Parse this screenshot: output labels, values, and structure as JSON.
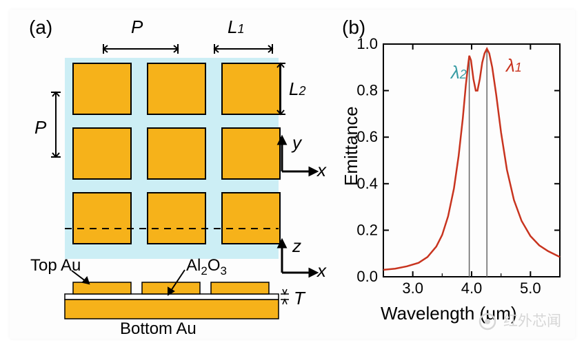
{
  "panel_a": {
    "label": "(a)",
    "dimensions": {
      "P": "P",
      "L1_base": "L",
      "L1_sub": "1",
      "L2_base": "L",
      "L2_sub": "2",
      "T": "T"
    },
    "axes": {
      "x": "x",
      "y": "y",
      "z": "z"
    },
    "materials": {
      "top": "Top Au",
      "spacer_base": "Al",
      "spacer_sub": "2",
      "spacer_base2": "O",
      "spacer_sub2": "3",
      "bottom": "Bottom Au"
    },
    "colors": {
      "substrate": "#cceef5",
      "gold": "#f6b21a",
      "spacer": "#ffffff",
      "stroke": "#000000",
      "dash": "#000000"
    },
    "grid": {
      "rows": 3,
      "cols": 3,
      "patch_w": 84,
      "patch_h": 74,
      "gap_x": 24,
      "gap_y": 20
    }
  },
  "panel_b": {
    "label": "(b)",
    "xlabel": "Wavelength (μm)",
    "ylabel": "Emittance",
    "xlim": [
      2.5,
      5.5
    ],
    "ylim": [
      0.0,
      1.0
    ],
    "xticks": [
      3.0,
      4.0,
      5.0
    ],
    "yticks": [
      0.0,
      0.2,
      0.4,
      0.6,
      0.8,
      1.0
    ],
    "ytick_labels": [
      "0.0",
      "0.2",
      "0.4",
      "0.6",
      "0.8",
      "1.0"
    ],
    "peaks": {
      "lambda1": {
        "wavelength": 4.26,
        "height": 0.98,
        "label_base": "λ",
        "label_sub": "1",
        "color": "#c8341f"
      },
      "lambda2": {
        "wavelength": 3.96,
        "height": 0.95,
        "label_base": "λ",
        "label_sub": "2",
        "color": "#3a9da5"
      }
    },
    "curve_color": "#c8341f",
    "axis_color": "#000000",
    "grid_marker_color": "#666666",
    "background": "#ffffff",
    "line_width": 2.5,
    "data": [
      [
        2.5,
        0.03
      ],
      [
        2.7,
        0.035
      ],
      [
        2.9,
        0.045
      ],
      [
        3.1,
        0.06
      ],
      [
        3.25,
        0.085
      ],
      [
        3.4,
        0.13
      ],
      [
        3.5,
        0.18
      ],
      [
        3.6,
        0.26
      ],
      [
        3.7,
        0.38
      ],
      [
        3.78,
        0.52
      ],
      [
        3.85,
        0.68
      ],
      [
        3.9,
        0.82
      ],
      [
        3.94,
        0.91
      ],
      [
        3.96,
        0.95
      ],
      [
        3.99,
        0.93
      ],
      [
        4.03,
        0.85
      ],
      [
        4.07,
        0.8
      ],
      [
        4.1,
        0.8
      ],
      [
        4.14,
        0.85
      ],
      [
        4.18,
        0.92
      ],
      [
        4.22,
        0.96
      ],
      [
        4.26,
        0.98
      ],
      [
        4.3,
        0.96
      ],
      [
        4.35,
        0.9
      ],
      [
        4.42,
        0.78
      ],
      [
        4.5,
        0.62
      ],
      [
        4.6,
        0.46
      ],
      [
        4.72,
        0.33
      ],
      [
        4.85,
        0.24
      ],
      [
        5.0,
        0.175
      ],
      [
        5.15,
        0.135
      ],
      [
        5.3,
        0.11
      ],
      [
        5.5,
        0.085
      ]
    ]
  },
  "watermark": "红外芯闻"
}
